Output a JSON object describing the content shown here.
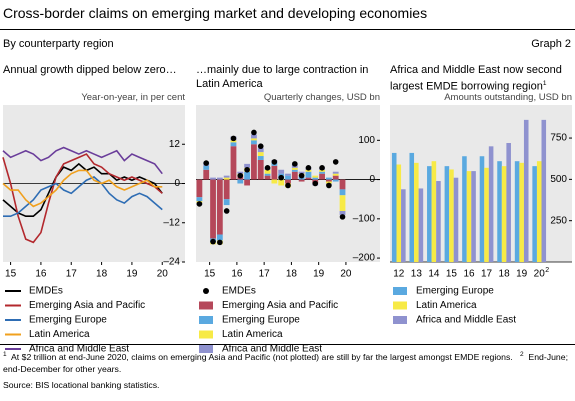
{
  "title": "Cross-border claims on emerging market and developing economies",
  "subtitle": "By counterparty region",
  "graph_label": "Graph 2",
  "chart_data": [
    {
      "type": "line",
      "title": "Annual growth dipped below zero…",
      "y_label": "Year-on-year, in per cent",
      "x": [
        2015.25,
        2015.5,
        2015.75,
        2016,
        2016.25,
        2016.5,
        2016.75,
        2017,
        2017.25,
        2017.5,
        2017.75,
        2018,
        2018.25,
        2018.5,
        2018.75,
        2019,
        2019.25,
        2019.5,
        2019.75,
        2020,
        2020.25,
        2020.5
      ],
      "xlim": [
        2015.25,
        2021.25
      ],
      "xticks": [
        {
          "value": 2015.5,
          "label": "15"
        },
        {
          "value": 2016.5,
          "label": "16"
        },
        {
          "value": 2017.5,
          "label": "17"
        },
        {
          "value": 2018.5,
          "label": "18"
        },
        {
          "value": 2019.5,
          "label": "19"
        },
        {
          "value": 2020.5,
          "label": "20"
        }
      ],
      "ylim": [
        -24,
        24
      ],
      "yticks": [
        12,
        0,
        {
          "value": -12,
          "label": "–12"
        },
        {
          "value": -24,
          "label": "–24"
        }
      ],
      "series": [
        {
          "name": "EMDEs",
          "color": "#000000",
          "values": [
            -5,
            -7,
            -9,
            -10,
            -10,
            -8,
            -3,
            2,
            5,
            4,
            6,
            4,
            5,
            3,
            3,
            1,
            2,
            1,
            2,
            1,
            0,
            -3
          ]
        },
        {
          "name": "Emerging Asia and Pacific",
          "color": "#b3282d",
          "values": [
            8,
            0,
            -10,
            -17,
            -18,
            -15,
            -6,
            2,
            6,
            7,
            8,
            9,
            6,
            5,
            3,
            2,
            1,
            2,
            1,
            0,
            -1,
            -3
          ]
        },
        {
          "name": "Emerging Europe",
          "color": "#2e6db4",
          "values": [
            -10,
            -10,
            -9,
            -7,
            -5,
            -2,
            -1,
            0,
            -2,
            -3,
            -1,
            1,
            2,
            0,
            -3,
            -5,
            -6,
            -4,
            -3,
            -4,
            -6,
            -8
          ]
        },
        {
          "name": "Latin America",
          "color": "#f0a01e",
          "values": [
            0,
            -2,
            -2,
            -5,
            -7,
            -6,
            -4,
            -2,
            1,
            3,
            4,
            4,
            1,
            0,
            1,
            -1,
            -2,
            -1,
            0,
            1,
            -1,
            -1
          ]
        },
        {
          "name": "Africa and Middle East",
          "color": "#6a3d9a",
          "values": [
            10,
            8,
            9,
            10,
            9,
            7,
            8,
            10,
            11,
            10,
            9,
            10,
            9,
            8,
            9,
            10,
            7,
            9,
            8,
            7,
            6,
            3
          ]
        }
      ]
    },
    {
      "type": "stacked_bar",
      "title": "…mainly due to large contraction in Latin America",
      "y_label": "Quarterly changes, USD bn",
      "x": [
        2015.125,
        2015.375,
        2015.625,
        2015.875,
        2016.125,
        2016.375,
        2016.625,
        2016.875,
        2017.125,
        2017.375,
        2017.625,
        2017.875,
        2018.125,
        2018.375,
        2018.625,
        2018.875,
        2019.125,
        2019.375,
        2019.625,
        2019.875,
        2020.125,
        2020.375
      ],
      "xlim": [
        2015,
        2021.75
      ],
      "xticks": [
        {
          "value": 2015.5,
          "label": "15"
        },
        {
          "value": 2016.5,
          "label": "16"
        },
        {
          "value": 2017.5,
          "label": "17"
        },
        {
          "value": 2018.5,
          "label": "18"
        },
        {
          "value": 2019.5,
          "label": "19"
        },
        {
          "value": 2020.5,
          "label": "20"
        }
      ],
      "ylim": [
        -210,
        190
      ],
      "yticks": [
        100,
        0,
        {
          "value": -100,
          "label": "–100"
        },
        {
          "value": -200,
          "label": "–200"
        }
      ],
      "total": {
        "name": "EMDEs",
        "color": "#000000",
        "values": [
          -62,
          42,
          -158,
          -160,
          -80,
          105,
          10,
          25,
          120,
          85,
          30,
          45,
          5,
          -15,
          40,
          10,
          30,
          -10,
          30,
          -15,
          45,
          -95
        ]
      },
      "series": [
        {
          "name": "Emerging Asia and Pacific",
          "color": "#b5485a",
          "values": [
            -45,
            25,
            -150,
            -140,
            -50,
            85,
            10,
            -15,
            90,
            50,
            10,
            35,
            0,
            -10,
            20,
            -5,
            5,
            -10,
            15,
            -5,
            10,
            -25
          ]
        },
        {
          "name": "Emerging Europe",
          "color": "#5aa9e0",
          "values": [
            -10,
            10,
            -10,
            -15,
            -15,
            10,
            -10,
            20,
            10,
            10,
            5,
            10,
            15,
            10,
            5,
            10,
            15,
            5,
            5,
            5,
            -5,
            -15
          ]
        },
        {
          "name": "Latin America",
          "color": "#f7ea46",
          "values": [
            -5,
            0,
            -5,
            -10,
            5,
            5,
            5,
            10,
            5,
            10,
            10,
            -10,
            -15,
            -10,
            5,
            5,
            5,
            5,
            5,
            -5,
            5,
            -40
          ]
        },
        {
          "name": "Africa and Middle East",
          "color": "#8f92cf",
          "values": [
            -5,
            10,
            5,
            5,
            5,
            10,
            5,
            10,
            10,
            10,
            5,
            5,
            10,
            5,
            10,
            5,
            5,
            -5,
            5,
            -5,
            5,
            -10
          ]
        }
      ]
    },
    {
      "type": "grouped_bar",
      "title": "Africa and Middle East now second largest EMDE borrowing region",
      "title_note": "1",
      "y_label": "Amounts outstanding, USD bn",
      "categories": [
        "12",
        "13",
        "14",
        "15",
        "16",
        "17",
        "18",
        "19",
        "20"
      ],
      "last_category_note": "2",
      "ylim": [
        0,
        950
      ],
      "yticks": [
        750,
        500,
        250
      ],
      "series": [
        {
          "name": "Emerging Europe",
          "color": "#5aa9e0",
          "values": [
            660,
            660,
            580,
            580,
            640,
            640,
            610,
            610,
            580
          ]
        },
        {
          "name": "Latin America",
          "color": "#f7ea46",
          "values": [
            590,
            600,
            610,
            560,
            550,
            570,
            580,
            600,
            610
          ]
        },
        {
          "name": "Africa and Middle East",
          "color": "#8f92cf",
          "values": [
            440,
            445,
            490,
            510,
            550,
            700,
            720,
            860,
            860
          ]
        }
      ]
    }
  ],
  "footnotes": [
    {
      "mark": "1",
      "text": "At $2 trillion at end-June 2020, claims on emerging Asia and Pacific (not plotted) are still by far the largest amongst EMDE regions."
    },
    {
      "mark": "2",
      "text": "End-June; end-December for other years."
    }
  ],
  "source": "Source: BIS locational banking statistics."
}
